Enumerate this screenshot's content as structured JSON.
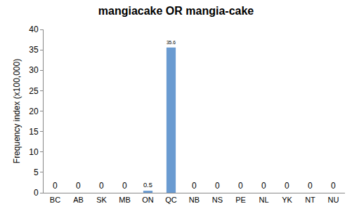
{
  "chart_data": {
    "type": "bar",
    "title": "mangiacake OR mangia-cake",
    "y_label": "Frequency index (x100,000)",
    "categories": [
      "BC",
      "AB",
      "SK",
      "MB",
      "ON",
      "QC",
      "NB",
      "NS",
      "PE",
      "NL",
      "YK",
      "NT",
      "NU"
    ],
    "values": [
      0,
      0,
      0,
      0,
      0.5,
      35.6,
      0,
      0,
      0,
      0,
      0,
      0,
      0
    ],
    "color": "#6a9bd1",
    "ylim": [
      0,
      40
    ],
    "yticks": [
      0,
      5,
      10,
      15,
      20,
      25,
      30,
      35,
      40
    ],
    "grid": false,
    "data_labels": true
  }
}
